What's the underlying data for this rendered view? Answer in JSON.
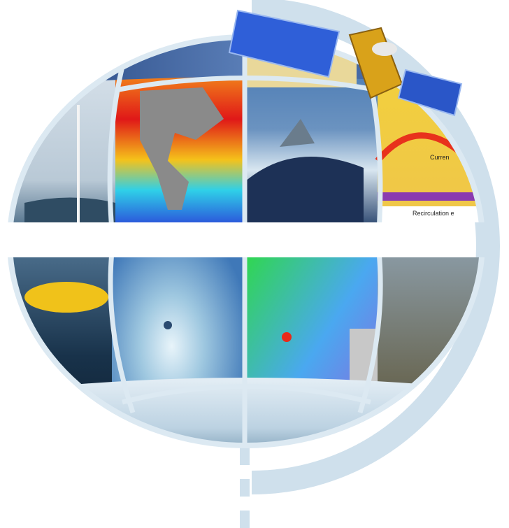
{
  "map_labels": [
    "Curren",
    "Recirculation e"
  ]
}
